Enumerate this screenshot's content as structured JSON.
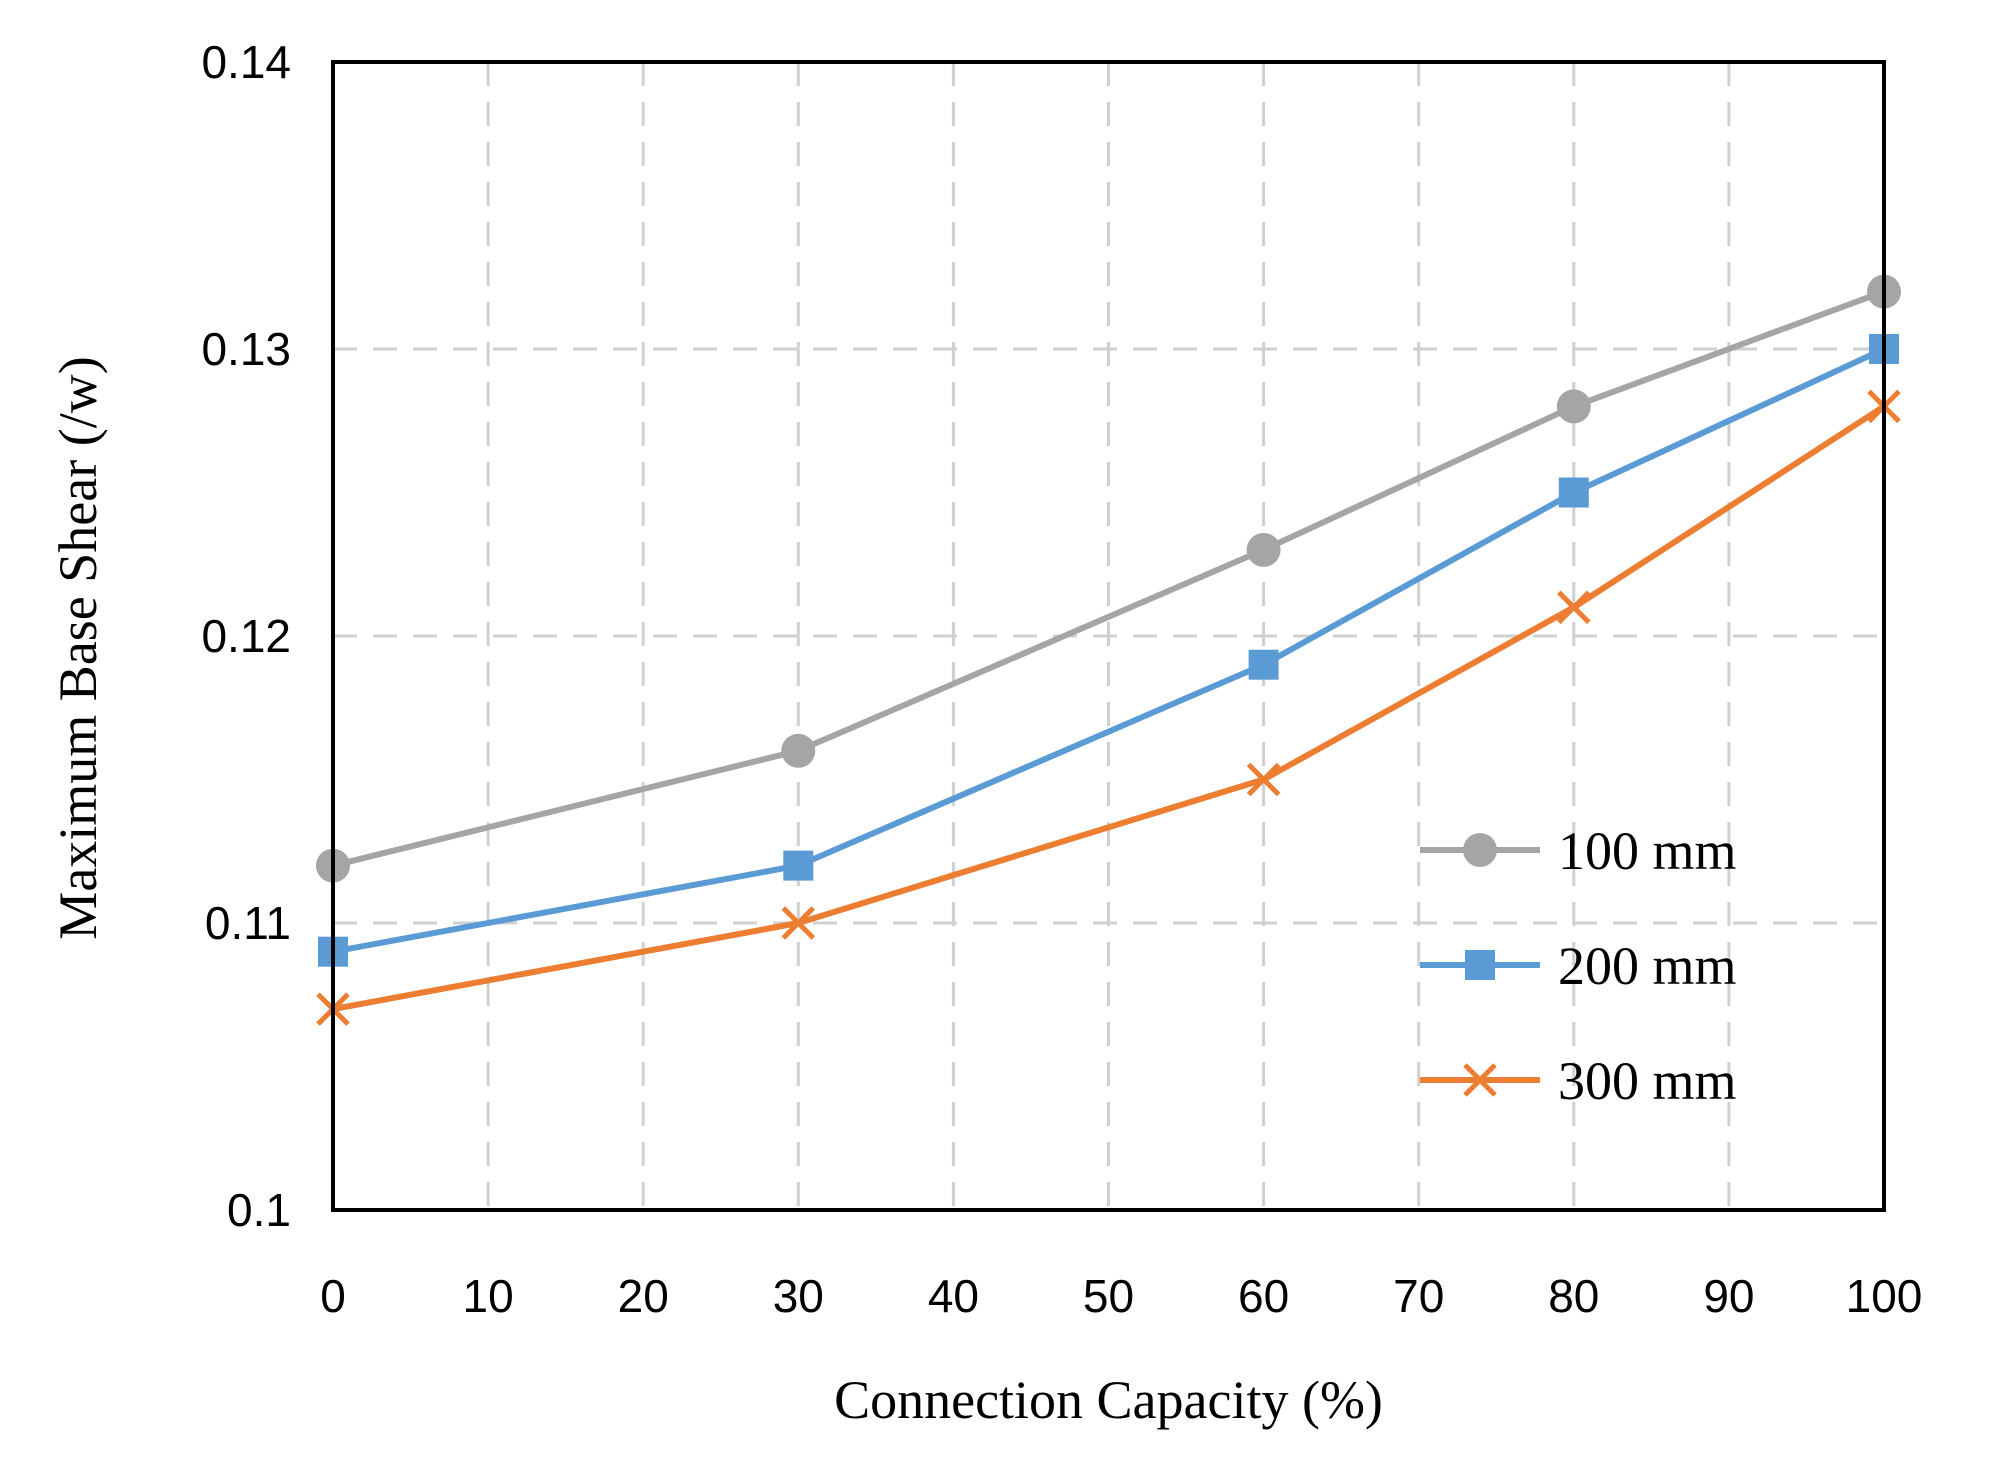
{
  "chart_data": {
    "type": "line",
    "title": "",
    "xlabel": "Connection Capacity (%)",
    "ylabel": "Maximum Base Shear (/w)",
    "xlim": [
      0,
      100
    ],
    "ylim": [
      0.1,
      0.14
    ],
    "xticks": [
      0,
      10,
      20,
      30,
      40,
      50,
      60,
      70,
      80,
      90,
      100
    ],
    "xtick_labels": [
      "0",
      "10",
      "20",
      "30",
      "40",
      "50",
      "60",
      "70",
      "80",
      "90",
      "100"
    ],
    "yticks": [
      0.1,
      0.11,
      0.12,
      0.13,
      0.14
    ],
    "ytick_labels": [
      "0.1",
      "0.11",
      "0.12",
      "0.13",
      "0.14"
    ],
    "grid": "dashed",
    "legend_position": "bottom-right",
    "x": [
      0,
      30,
      60,
      80,
      100
    ],
    "series": [
      {
        "name": "100 mm",
        "marker": "circle",
        "color": "#A5A5A5",
        "values": [
          0.112,
          0.116,
          0.123,
          0.128,
          0.132
        ]
      },
      {
        "name": "200 mm",
        "marker": "square",
        "color": "#5B9BD5",
        "values": [
          0.109,
          0.112,
          0.119,
          0.125,
          0.13
        ]
      },
      {
        "name": "300 mm",
        "marker": "x",
        "color": "#ED7D31",
        "values": [
          0.107,
          0.11,
          0.115,
          0.121,
          0.128
        ]
      }
    ]
  }
}
